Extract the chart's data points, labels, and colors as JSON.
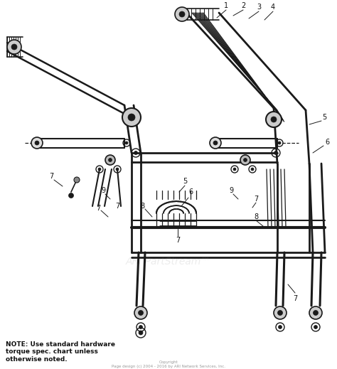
{
  "background_color": "#ffffff",
  "fig_width": 4.74,
  "fig_height": 5.19,
  "dpi": 100,
  "note_text": "NOTE: Use standard hardware\ntorque spec. chart unless\notherwise noted.",
  "note_fontsize": 6.5,
  "copyright_text": "Copyright\nPage design (c) 2004 - 2016 by ARI Network Services, Inc.",
  "copyright_fontsize": 4.0,
  "watermark_text": "ARI PartStream™",
  "watermark_fontsize": 10,
  "watermark_alpha": 0.15,
  "line_color": "#1a1a1a",
  "label_color": "#111111",
  "label_fontsize": 7,
  "diagram_region": [
    0.0,
    0.18,
    1.0,
    1.0
  ]
}
